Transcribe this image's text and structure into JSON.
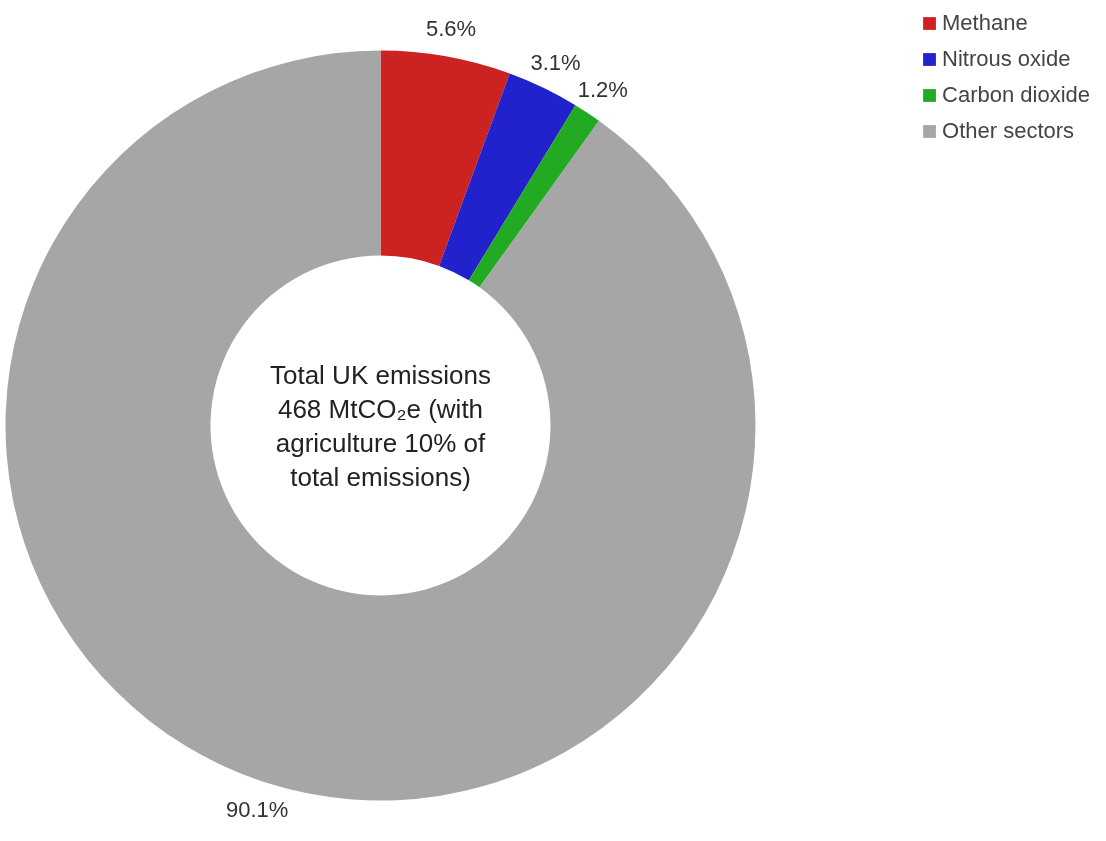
{
  "chart_data": {
    "type": "donut",
    "categories": [
      "Methane",
      "Nitrous oxide",
      "Carbon dioxide",
      "Other sectors"
    ],
    "values": [
      5.6,
      3.1,
      1.2,
      90.1
    ],
    "colors": [
      "#cc2222",
      "#2222cc",
      "#22aa22",
      "#a6a6a6"
    ],
    "value_labels": [
      "5.6%",
      "3.1%",
      "1.2%",
      "90.1%"
    ],
    "legend": "top right",
    "annotations": [
      "Total UK emissions 468 MtCO₂e (with agriculture 10% of total emissions)"
    ]
  }
}
